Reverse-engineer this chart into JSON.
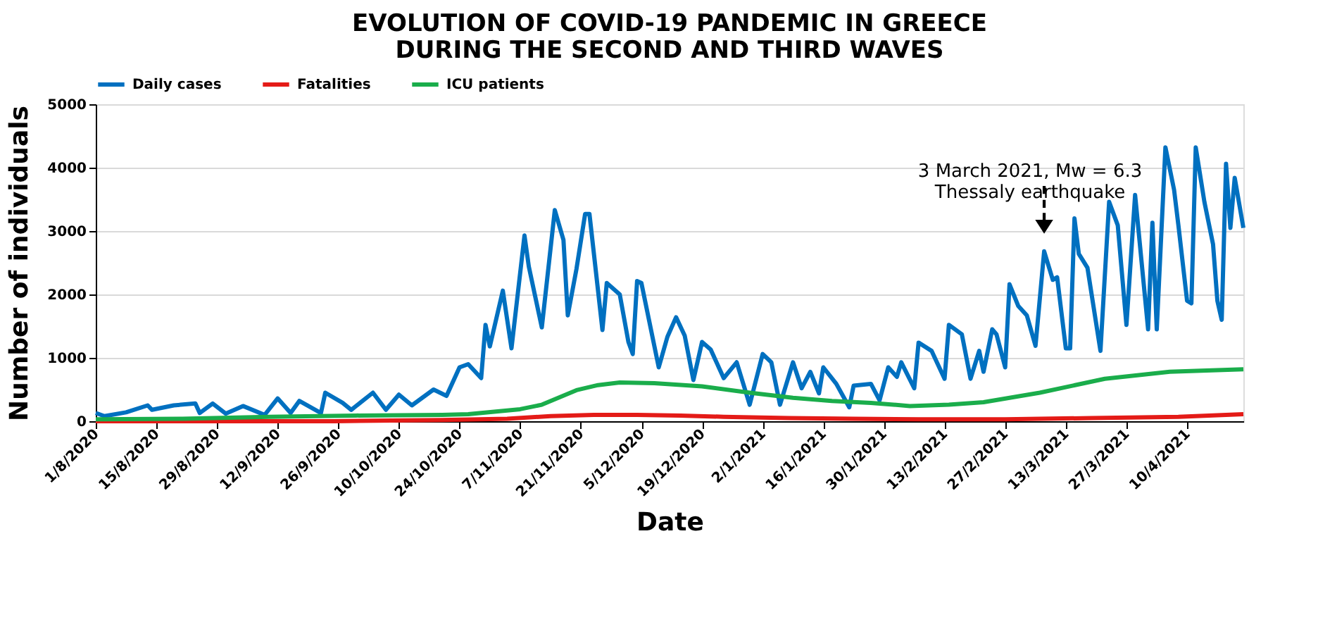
{
  "chart_data": {
    "type": "line",
    "title": "EVOLUTION OF COVID-19 PANDEMIC IN GREECE\nDURING THE SECOND AND THIRD WAVES",
    "xlabel": "Date",
    "ylabel": "Number of individuals",
    "series": [
      {
        "name": "Daily cases",
        "color": "#0070c0",
        "x": [
          "2020-08-01",
          "2020-08-03",
          "2020-08-08",
          "2020-08-13",
          "2020-08-14",
          "2020-08-19",
          "2020-08-24",
          "2020-08-25",
          "2020-08-28",
          "2020-08-31",
          "2020-09-04",
          "2020-09-09",
          "2020-09-12",
          "2020-09-15",
          "2020-09-17",
          "2020-09-22",
          "2020-09-23",
          "2020-09-27",
          "2020-09-29",
          "2020-10-04",
          "2020-10-07",
          "2020-10-10",
          "2020-10-13",
          "2020-10-18",
          "2020-10-21",
          "2020-10-24",
          "2020-10-26",
          "2020-10-29",
          "2020-10-30",
          "2020-10-31",
          "2020-11-03",
          "2020-11-05",
          "2020-11-08",
          "2020-11-09",
          "2020-11-12",
          "2020-11-15",
          "2020-11-17",
          "2020-11-18",
          "2020-11-20",
          "2020-11-22",
          "2020-11-23",
          "2020-11-26",
          "2020-11-27",
          "2020-11-30",
          "2020-12-02",
          "2020-12-03",
          "2020-12-04",
          "2020-12-05",
          "2020-12-09",
          "2020-12-11",
          "2020-12-13",
          "2020-12-15",
          "2020-12-17",
          "2020-12-19",
          "2020-12-21",
          "2020-12-24",
          "2020-12-27",
          "2020-12-30",
          "2021-01-02",
          "2021-01-04",
          "2021-01-06",
          "2021-01-09",
          "2021-01-11",
          "2021-01-13",
          "2021-01-15",
          "2021-01-16",
          "2021-01-19",
          "2021-01-22",
          "2021-01-23",
          "2021-01-27",
          "2021-01-29",
          "2021-01-31",
          "2021-02-02",
          "2021-02-03",
          "2021-02-06",
          "2021-02-07",
          "2021-02-10",
          "2021-02-13",
          "2021-02-14",
          "2021-02-17",
          "2021-02-19",
          "2021-02-21",
          "2021-02-22",
          "2021-02-24",
          "2021-02-25",
          "2021-02-27",
          "2021-02-28",
          "2021-03-02",
          "2021-03-04",
          "2021-03-06",
          "2021-03-08",
          "2021-03-10",
          "2021-03-11",
          "2021-03-13",
          "2021-03-14",
          "2021-03-15",
          "2021-03-16",
          "2021-03-18",
          "2021-03-21",
          "2021-03-23",
          "2021-03-25",
          "2021-03-27",
          "2021-03-29",
          "2021-04-01",
          "2021-04-02",
          "2021-04-03",
          "2021-04-05",
          "2021-04-07",
          "2021-04-08",
          "2021-04-10",
          "2021-04-11",
          "2021-04-12",
          "2021-04-14",
          "2021-04-16",
          "2021-04-17",
          "2021-04-18",
          "2021-04-19",
          "2021-04-20",
          "2021-04-21",
          "2021-04-23"
        ],
        "values": [
          130,
          80,
          140,
          250,
          180,
          250,
          280,
          130,
          280,
          120,
          240,
          100,
          360,
          130,
          320,
          130,
          450,
          290,
          180,
          450,
          180,
          420,
          250,
          500,
          400,
          850,
          900,
          680,
          1520,
          1180,
          2060,
          1150,
          2930,
          2440,
          1480,
          3330,
          2860,
          1670,
          2400,
          3270,
          3270,
          1440,
          2180,
          2000,
          1250,
          1060,
          2210,
          2180,
          850,
          1330,
          1640,
          1350,
          650,
          1250,
          1130,
          680,
          930,
          260,
          1060,
          930,
          260,
          930,
          520,
          780,
          440,
          850,
          590,
          220,
          560,
          590,
          330,
          850,
          700,
          930,
          520,
          1240,
          1110,
          670,
          1520,
          1370,
          670,
          1110,
          780,
          1450,
          1370,
          850,
          2160,
          1820,
          1670,
          1190,
          2680,
          2230,
          2270,
          1150,
          1150,
          3200,
          2640,
          2420,
          1110,
          3460,
          3090,
          1520,
          3570,
          1450,
          3130,
          1450,
          4320,
          3650,
          3090,
          1900,
          1860,
          4320,
          3460,
          2790,
          1900,
          1600,
          4060,
          3050,
          3840,
          3050
        ]
      },
      {
        "name": "Fatalities",
        "color": "#e41b17",
        "x": [
          "2020-08-01",
          "2020-09-25",
          "2020-10-20",
          "2020-11-04",
          "2020-11-14",
          "2020-11-24",
          "2020-12-04",
          "2020-12-14",
          "2020-12-24",
          "2021-01-08",
          "2021-01-23",
          "2021-02-07",
          "2021-02-27",
          "2021-03-19",
          "2021-04-08",
          "2021-04-23"
        ],
        "values": [
          0,
          0,
          20,
          40,
          80,
          100,
          100,
          90,
          70,
          50,
          40,
          30,
          30,
          50,
          70,
          110
        ]
      },
      {
        "name": "ICU patients",
        "color": "#1aad4b",
        "x": [
          "2020-08-01",
          "2020-08-21",
          "2020-09-10",
          "2020-09-30",
          "2020-10-20",
          "2020-10-26",
          "2020-11-01",
          "2020-11-07",
          "2020-11-12",
          "2020-11-20",
          "2020-11-25",
          "2020-11-30",
          "2020-12-08",
          "2020-12-19",
          "2020-12-30",
          "2021-01-09",
          "2021-01-18",
          "2021-01-27",
          "2021-02-05",
          "2021-02-14",
          "2021-02-22",
          "2021-03-07",
          "2021-03-22",
          "2021-04-06",
          "2021-04-23"
        ],
        "values": [
          30,
          40,
          70,
          90,
          100,
          110,
          150,
          190,
          260,
          490,
          570,
          610,
          600,
          550,
          450,
          370,
          320,
          290,
          240,
          260,
          300,
          450,
          670,
          780,
          820
        ]
      }
    ],
    "xlim": [
      "2020-08-01",
      "2021-04-23"
    ],
    "xticks": [
      {
        "value": "2020-08-01",
        "label": "1/8/2020"
      },
      {
        "value": "2020-08-15",
        "label": "15/8/2020"
      },
      {
        "value": "2020-08-29",
        "label": "29/8/2020"
      },
      {
        "value": "2020-09-12",
        "label": "12/9/2020"
      },
      {
        "value": "2020-09-26",
        "label": "26/9/2020"
      },
      {
        "value": "2020-10-10",
        "label": "10/10/2020"
      },
      {
        "value": "2020-10-24",
        "label": "24/10/2020"
      },
      {
        "value": "2020-11-07",
        "label": "7/11/2020"
      },
      {
        "value": "2020-11-21",
        "label": "21/11/2020"
      },
      {
        "value": "2020-12-05",
        "label": "5/12/2020"
      },
      {
        "value": "2020-12-19",
        "label": "19/12/2020"
      },
      {
        "value": "2021-01-02",
        "label": "2/1/2021"
      },
      {
        "value": "2021-01-16",
        "label": "16/1/2021"
      },
      {
        "value": "2021-01-30",
        "label": "30/1/2021"
      },
      {
        "value": "2021-02-13",
        "label": "13/2/2021"
      },
      {
        "value": "2021-02-27",
        "label": "27/2/2021"
      },
      {
        "value": "2021-03-13",
        "label": "13/3/2021"
      },
      {
        "value": "2021-03-27",
        "label": "27/3/2021"
      },
      {
        "value": "2021-04-10",
        "label": "10/4/2021"
      }
    ],
    "ylim": [
      0,
      5000
    ],
    "yticks": [
      0,
      1000,
      2000,
      3000,
      4000,
      5000
    ],
    "grid": "y",
    "legend": "top",
    "line_style": "solid",
    "marker": "none",
    "annotations": [
      {
        "text": "3 March 2021, Mw = 6.3\nThessaly earthquake",
        "x": "2021-03-08",
        "y": 2680
      }
    ]
  }
}
